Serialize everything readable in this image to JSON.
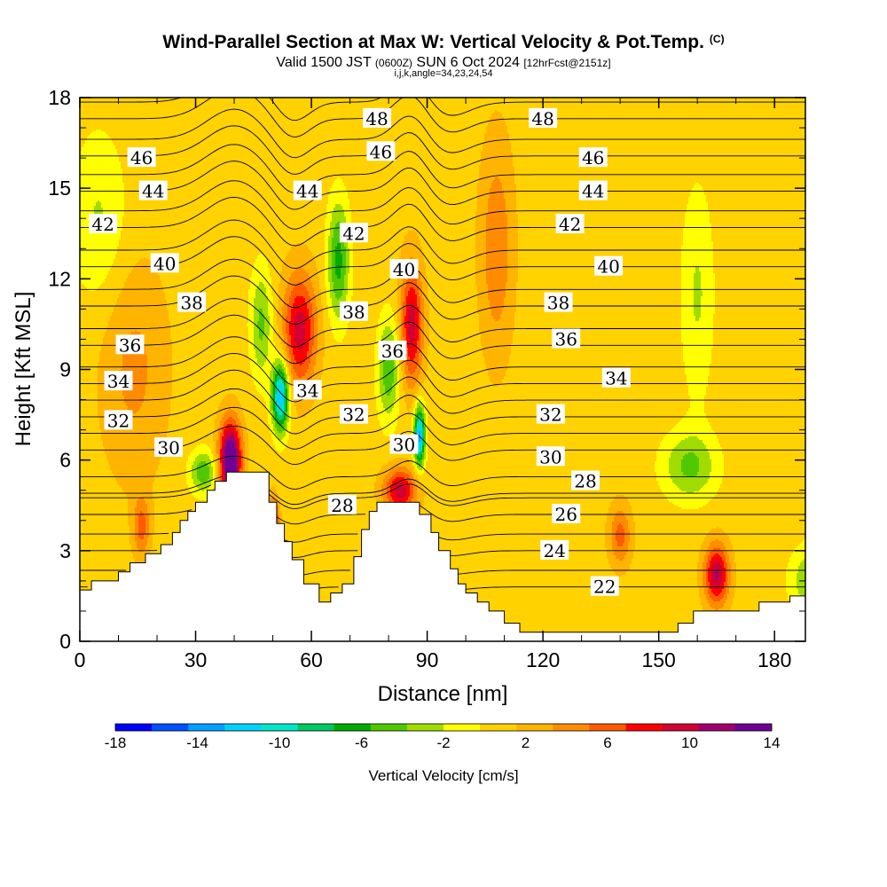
{
  "header": {
    "title": "Wind-Parallel Section at Max W: Vertical Velocity & Pot.Temp.",
    "copyright": "(C)",
    "subtitle_a": "Valid 1500 JST",
    "subtitle_b": "(0600Z)",
    "subtitle_c": "SUN 6 Oct 2024",
    "subtitle_d": "[12hrFcst@2151z]",
    "indices": "i,j,k,angle=34,23,24,54"
  },
  "chart_data": {
    "type": "heatmap",
    "title": "Wind-Parallel Section at Max W: Vertical Velocity & Pot.Temp.",
    "xlabel": "Distance [nm]",
    "ylabel": "Height [Kft MSL]",
    "xlim": [
      0,
      188
    ],
    "ylim": [
      0,
      18
    ],
    "xticks": [
      0,
      30,
      60,
      90,
      120,
      150,
      180
    ],
    "xtick_labels": [
      "0",
      "30",
      "60",
      "90",
      "120",
      "150",
      "180"
    ],
    "yticks": [
      0,
      3,
      6,
      9,
      12,
      15,
      18
    ],
    "ytick_labels": [
      "0",
      "3",
      "6",
      "9",
      "12",
      "15",
      "18"
    ],
    "colorbar": {
      "label": "Vertical Velocity [cm/s]",
      "min": -18,
      "max": 14,
      "tick_values": [
        -18,
        -14,
        -10,
        -6,
        -2,
        2,
        6,
        10,
        14
      ],
      "tick_labels": [
        "-18",
        "-14",
        "-10",
        "-6",
        "-2",
        "2",
        "6",
        "10",
        "14"
      ],
      "colors": [
        "#0000ff",
        "#0050ff",
        "#00a0ff",
        "#00d2ff",
        "#00e6c8",
        "#00c864",
        "#00aa00",
        "#50c800",
        "#a0dc00",
        "#ffff00",
        "#ffd200",
        "#ffb400",
        "#ff8c00",
        "#ff5a00",
        "#ff0000",
        "#d20032",
        "#a0006e",
        "#6e0096"
      ]
    },
    "terrain_kft": [
      [
        0,
        1.7
      ],
      [
        3,
        1.7
      ],
      [
        3,
        2.0
      ],
      [
        10,
        2.0
      ],
      [
        10,
        2.3
      ],
      [
        13,
        2.3
      ],
      [
        13,
        2.6
      ],
      [
        17,
        2.6
      ],
      [
        17,
        2.9
      ],
      [
        21,
        2.9
      ],
      [
        21,
        3.2
      ],
      [
        24,
        3.2
      ],
      [
        24,
        3.6
      ],
      [
        26,
        3.6
      ],
      [
        26,
        4.0
      ],
      [
        28,
        4.0
      ],
      [
        28,
        4.3
      ],
      [
        30,
        4.3
      ],
      [
        30,
        4.6
      ],
      [
        33,
        4.6
      ],
      [
        33,
        5.0
      ],
      [
        35,
        5.0
      ],
      [
        35,
        5.3
      ],
      [
        38,
        5.3
      ],
      [
        38,
        5.6
      ],
      [
        49,
        5.6
      ],
      [
        49,
        4.6
      ],
      [
        51,
        4.6
      ],
      [
        51,
        3.9
      ],
      [
        53,
        3.9
      ],
      [
        53,
        3.3
      ],
      [
        55,
        3.3
      ],
      [
        55,
        2.7
      ],
      [
        58,
        2.7
      ],
      [
        58,
        1.9
      ],
      [
        62,
        1.9
      ],
      [
        62,
        1.3
      ],
      [
        65,
        1.3
      ],
      [
        65,
        1.6
      ],
      [
        68,
        1.6
      ],
      [
        68,
        1.9
      ],
      [
        71,
        1.9
      ],
      [
        71,
        2.8
      ],
      [
        73,
        2.8
      ],
      [
        73,
        3.7
      ],
      [
        75,
        3.7
      ],
      [
        75,
        4.3
      ],
      [
        77,
        4.3
      ],
      [
        77,
        4.6
      ],
      [
        88,
        4.6
      ],
      [
        88,
        4.2
      ],
      [
        91,
        4.2
      ],
      [
        91,
        3.6
      ],
      [
        93,
        3.6
      ],
      [
        93,
        3.0
      ],
      [
        96,
        3.0
      ],
      [
        96,
        2.4
      ],
      [
        98,
        2.4
      ],
      [
        98,
        1.9
      ],
      [
        100,
        1.9
      ],
      [
        100,
        1.6
      ],
      [
        103,
        1.6
      ],
      [
        103,
        1.3
      ],
      [
        106,
        1.3
      ],
      [
        106,
        1.0
      ],
      [
        110,
        1.0
      ],
      [
        110,
        0.6
      ],
      [
        114,
        0.6
      ],
      [
        114,
        0.3
      ],
      [
        155,
        0.3
      ],
      [
        155,
        0.6
      ],
      [
        159,
        0.6
      ],
      [
        159,
        1.0
      ],
      [
        176,
        1.0
      ],
      [
        176,
        1.3
      ],
      [
        184,
        1.3
      ],
      [
        184,
        1.5
      ],
      [
        188,
        1.5
      ]
    ],
    "theta_isentrope_labels": [
      {
        "value": "48",
        "x": 77,
        "y": 17.3
      },
      {
        "value": "48",
        "x": 120,
        "y": 17.3
      },
      {
        "value": "46",
        "x": 16,
        "y": 16.0
      },
      {
        "value": "46",
        "x": 78,
        "y": 16.2
      },
      {
        "value": "46",
        "x": 133,
        "y": 16.0
      },
      {
        "value": "44",
        "x": 19,
        "y": 14.9
      },
      {
        "value": "44",
        "x": 59,
        "y": 14.9
      },
      {
        "value": "44",
        "x": 133,
        "y": 14.9
      },
      {
        "value": "42",
        "x": 6,
        "y": 13.8
      },
      {
        "value": "42",
        "x": 71,
        "y": 13.5
      },
      {
        "value": "42",
        "x": 127,
        "y": 13.8
      },
      {
        "value": "40",
        "x": 22,
        "y": 12.5
      },
      {
        "value": "40",
        "x": 84,
        "y": 12.3
      },
      {
        "value": "40",
        "x": 137,
        "y": 12.4
      },
      {
        "value": "38",
        "x": 29,
        "y": 11.2
      },
      {
        "value": "38",
        "x": 71,
        "y": 10.9
      },
      {
        "value": "38",
        "x": 124,
        "y": 11.2
      },
      {
        "value": "36",
        "x": 13,
        "y": 9.8
      },
      {
        "value": "36",
        "x": 81,
        "y": 9.6
      },
      {
        "value": "36",
        "x": 126,
        "y": 10.0
      },
      {
        "value": "34",
        "x": 10,
        "y": 8.6
      },
      {
        "value": "34",
        "x": 59,
        "y": 8.3
      },
      {
        "value": "34",
        "x": 139,
        "y": 8.7
      },
      {
        "value": "32",
        "x": 10,
        "y": 7.3
      },
      {
        "value": "32",
        "x": 71,
        "y": 7.5
      },
      {
        "value": "32",
        "x": 122,
        "y": 7.5
      },
      {
        "value": "30",
        "x": 23,
        "y": 6.4
      },
      {
        "value": "30",
        "x": 84,
        "y": 6.5
      },
      {
        "value": "30",
        "x": 122,
        "y": 6.1
      },
      {
        "value": "28",
        "x": 68,
        "y": 4.5
      },
      {
        "value": "28",
        "x": 131,
        "y": 5.3
      },
      {
        "value": "26",
        "x": 126,
        "y": 4.2
      },
      {
        "value": "24",
        "x": 123,
        "y": 3.0
      },
      {
        "value": "22",
        "x": 136,
        "y": 1.8
      }
    ],
    "velocity_features": [
      {
        "x": 39,
        "y": 6.0,
        "sx": 2.0,
        "sy": 0.9,
        "w": 15
      },
      {
        "x": 50,
        "y": 3.7,
        "sx": 1.0,
        "sy": 0.6,
        "w": 13
      },
      {
        "x": 57,
        "y": 10.3,
        "sx": 3.0,
        "sy": 1.3,
        "w": 9
      },
      {
        "x": 86,
        "y": 10.5,
        "sx": 2.0,
        "sy": 1.4,
        "w": 9
      },
      {
        "x": 83,
        "y": 5.0,
        "sx": 3.0,
        "sy": 0.5,
        "w": 9
      },
      {
        "x": 165,
        "y": 2.2,
        "sx": 2.2,
        "sy": 0.7,
        "w": 10
      },
      {
        "x": 52,
        "y": 8.1,
        "sx": 1.5,
        "sy": 0.8,
        "w": -14
      },
      {
        "x": 88,
        "y": 6.8,
        "sx": 1.0,
        "sy": 0.7,
        "w": -14
      },
      {
        "x": 67,
        "y": 12.6,
        "sx": 2.0,
        "sy": 1.4,
        "w": -7
      },
      {
        "x": 80,
        "y": 9.0,
        "sx": 2.0,
        "sy": 1.2,
        "w": -6
      },
      {
        "x": 32,
        "y": 5.6,
        "sx": 2.5,
        "sy": 0.5,
        "w": -6
      },
      {
        "x": 47,
        "y": 10.5,
        "sx": 2.0,
        "sy": 1.3,
        "w": -5
      },
      {
        "x": 158,
        "y": 5.8,
        "sx": 5.0,
        "sy": 0.8,
        "w": -5
      },
      {
        "x": 5,
        "y": 14.0,
        "sx": 5.0,
        "sy": 2.0,
        "w": -3
      },
      {
        "x": 190,
        "y": 2.0,
        "sx": 4.0,
        "sy": 0.8,
        "w": -5
      },
      {
        "x": 14,
        "y": 9.0,
        "sx": 6.0,
        "sy": 2.5,
        "w": 3
      },
      {
        "x": 160,
        "y": 11.5,
        "sx": 3.0,
        "sy": 2.5,
        "w": -3
      },
      {
        "x": 140,
        "y": 3.5,
        "sx": 2.0,
        "sy": 0.7,
        "w": 5
      },
      {
        "x": 108,
        "y": 13.0,
        "sx": 3.0,
        "sy": 2.5,
        "w": 4
      },
      {
        "x": 16,
        "y": 3.8,
        "sx": 1.5,
        "sy": 0.7,
        "w": 5
      }
    ]
  }
}
